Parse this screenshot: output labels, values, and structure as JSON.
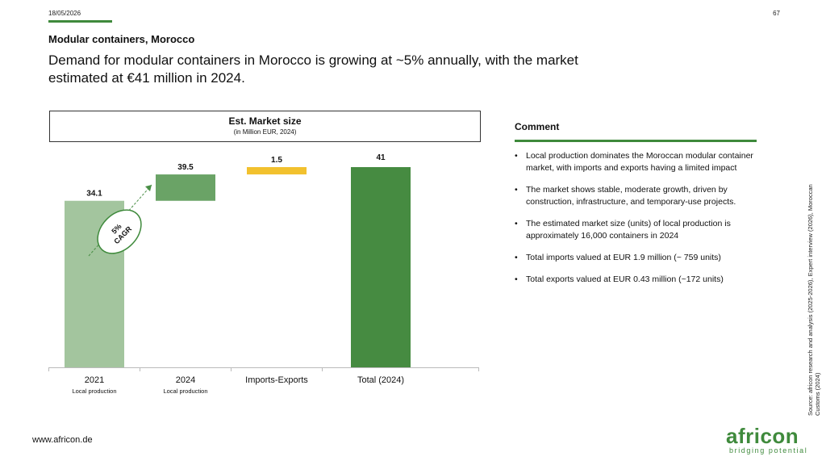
{
  "header": {
    "date": "18/05/2026",
    "page_number": "67",
    "section": "Modular containers, Morocco",
    "headline": "Demand for modular containers in Morocco is growing at ~5% annually, with the market estimated at €41 million in 2024."
  },
  "chart_data": {
    "type": "bar",
    "title": "Est. Market size",
    "subtitle": "(in Million EUR, 2024)",
    "categories": [
      "2021",
      "2024",
      "Imports-Exports",
      "Total (2024)"
    ],
    "sublabels": [
      "Local production",
      "Local production",
      "",
      ""
    ],
    "values": [
      34.1,
      39.5,
      1.5,
      41
    ],
    "data_labels": [
      "34.1",
      "39.5",
      "1.5",
      "41"
    ],
    "colors": [
      "#a3c59e",
      "#6aa366",
      "#f2c12e",
      "#468b41"
    ],
    "annotation": {
      "text_line1": "5%",
      "text_line2": "CAGR"
    }
  },
  "comment": {
    "title": "Comment",
    "bullets": [
      " Local production dominates the Moroccan modular container market, with imports and exports having a limited impact",
      "The market shows stable, moderate growth, driven by construction, infrastructure, and temporary-use projects.",
      "The estimated market size (units) of local production is approximately 16,000 containers in 2024",
      "Total imports valued at EUR 1.9 million (~ 759 units)",
      "Total exports valued at EUR 0.43 million (~172 units)"
    ]
  },
  "footer": {
    "source": "Source: africon research and analysis (2025-2026), Expert interview (2026), Moroccan Customs (2024)",
    "website": "www.africon.de",
    "logo_word": "africon",
    "logo_tagline": "bridging potential"
  },
  "colors": {
    "accent": "#3f8a3c"
  }
}
